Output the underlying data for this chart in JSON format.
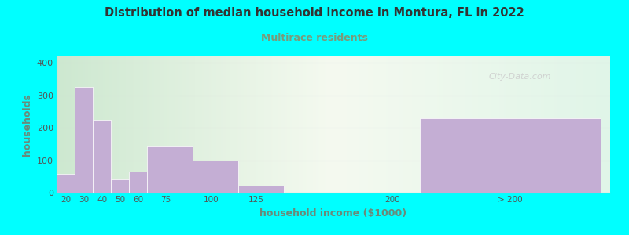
{
  "title": "Distribution of median household income in Montura, FL in 2022",
  "subtitle": "Multirace residents",
  "xlabel": "household income ($1000)",
  "ylabel": "households",
  "background_color": "#00FFFF",
  "plot_bg_left": "#d4edda",
  "plot_bg_mid": "#f0f8e8",
  "plot_bg_right": "#eafaf0",
  "bar_color": "#c4aed4",
  "bar_edge_color": "#c4aed4",
  "title_color": "#333333",
  "subtitle_color": "#7a9a7a",
  "axis_label_color": "#6a8a7a",
  "tick_label_color": "#555555",
  "watermark": "City-Data.com",
  "ylim": [
    0,
    420
  ],
  "yticks": [
    0,
    100,
    200,
    300,
    400
  ],
  "values": [
    57,
    327,
    225,
    40,
    65,
    142,
    98,
    22,
    0,
    230
  ],
  "bar_lefts": [
    15,
    25,
    35,
    45,
    55,
    65,
    90,
    115,
    140,
    215
  ],
  "bar_widths": [
    10,
    10,
    10,
    10,
    10,
    25,
    25,
    25,
    75,
    100
  ],
  "xlim": [
    15,
    320
  ],
  "xtick_positions": [
    20,
    30,
    40,
    50,
    60,
    75,
    100,
    125,
    200,
    265
  ],
  "xtick_labels": [
    "20",
    "30",
    "40",
    "50",
    "60",
    "75",
    "100",
    "125",
    "200",
    "> 200"
  ],
  "figsize": [
    8.0,
    3.0
  ],
  "dpi": 100
}
